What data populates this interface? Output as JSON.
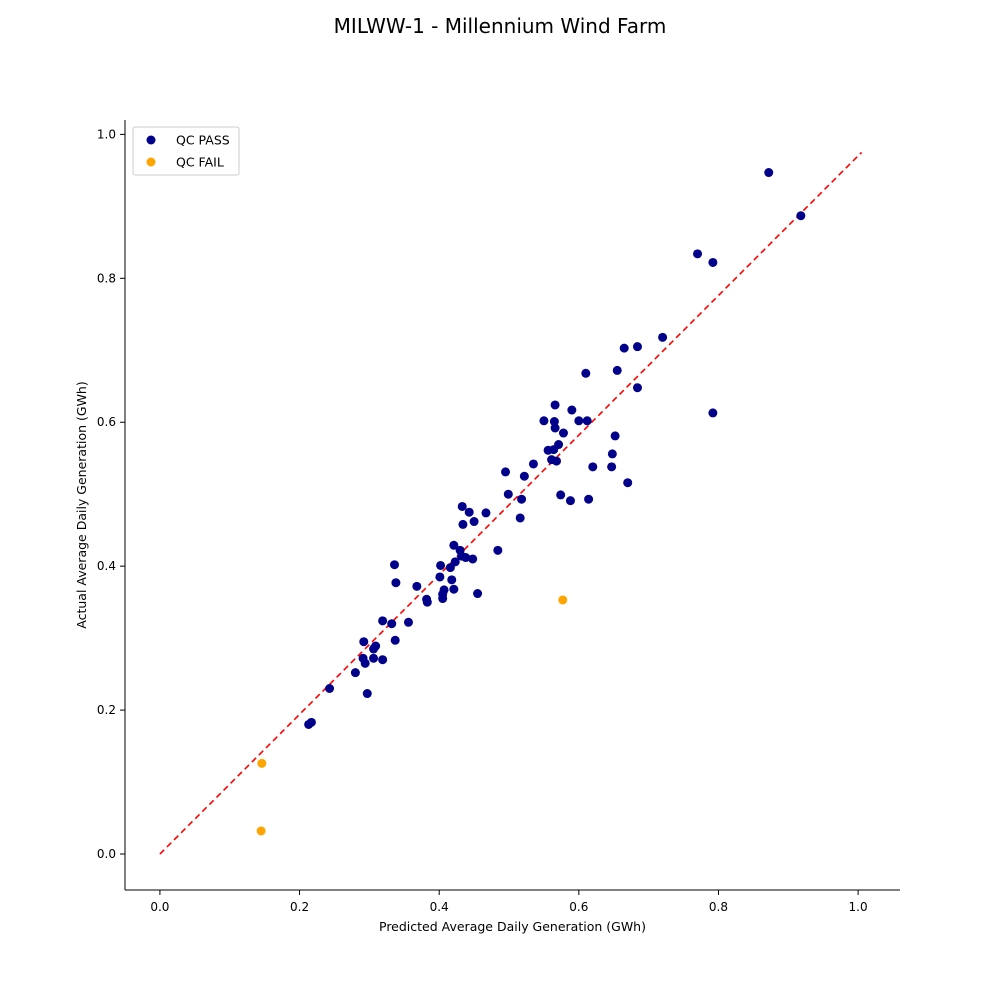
{
  "chart_data": {
    "type": "scatter",
    "title": "MILWW-1 - Millennium Wind Farm",
    "xlabel": "Predicted Average Daily Generation (GWh)",
    "ylabel": "Actual Average Daily Generation (GWh)",
    "xlim": [
      -0.05,
      1.06
    ],
    "ylim": [
      -0.05,
      1.02
    ],
    "xticks": [
      "0.0",
      "0.2",
      "0.4",
      "0.6",
      "0.8",
      "1.0"
    ],
    "yticks": [
      "0.0",
      "0.2",
      "0.4",
      "0.6",
      "0.8",
      "1.0"
    ],
    "grid": false,
    "legend_position": "top-left",
    "reference_line": {
      "style": "dashed",
      "color": "#ff0000",
      "x": [
        0.0,
        1.005
      ],
      "y": [
        0.0,
        0.975
      ]
    },
    "series": [
      {
        "name": "QC PASS",
        "color": "#00008b",
        "points": [
          [
            0.872,
            0.947
          ],
          [
            0.918,
            0.887
          ],
          [
            0.77,
            0.834
          ],
          [
            0.792,
            0.822
          ],
          [
            0.792,
            0.613
          ],
          [
            0.72,
            0.718
          ],
          [
            0.684,
            0.705
          ],
          [
            0.665,
            0.703
          ],
          [
            0.684,
            0.648
          ],
          [
            0.655,
            0.672
          ],
          [
            0.61,
            0.668
          ],
          [
            0.566,
            0.624
          ],
          [
            0.59,
            0.617
          ],
          [
            0.55,
            0.602
          ],
          [
            0.565,
            0.601
          ],
          [
            0.6,
            0.602
          ],
          [
            0.612,
            0.602
          ],
          [
            0.566,
            0.592
          ],
          [
            0.578,
            0.585
          ],
          [
            0.652,
            0.581
          ],
          [
            0.571,
            0.569
          ],
          [
            0.556,
            0.561
          ],
          [
            0.564,
            0.562
          ],
          [
            0.648,
            0.556
          ],
          [
            0.561,
            0.548
          ],
          [
            0.568,
            0.546
          ],
          [
            0.535,
            0.542
          ],
          [
            0.62,
            0.538
          ],
          [
            0.647,
            0.538
          ],
          [
            0.495,
            0.531
          ],
          [
            0.522,
            0.525
          ],
          [
            0.67,
            0.516
          ],
          [
            0.499,
            0.5
          ],
          [
            0.574,
            0.499
          ],
          [
            0.588,
            0.491
          ],
          [
            0.614,
            0.493
          ],
          [
            0.518,
            0.493
          ],
          [
            0.433,
            0.483
          ],
          [
            0.443,
            0.475
          ],
          [
            0.467,
            0.474
          ],
          [
            0.516,
            0.467
          ],
          [
            0.45,
            0.462
          ],
          [
            0.434,
            0.458
          ],
          [
            0.421,
            0.429
          ],
          [
            0.43,
            0.422
          ],
          [
            0.484,
            0.422
          ],
          [
            0.432,
            0.414
          ],
          [
            0.438,
            0.412
          ],
          [
            0.448,
            0.41
          ],
          [
            0.423,
            0.406
          ],
          [
            0.336,
            0.402
          ],
          [
            0.402,
            0.401
          ],
          [
            0.416,
            0.398
          ],
          [
            0.401,
            0.385
          ],
          [
            0.418,
            0.381
          ],
          [
            0.338,
            0.377
          ],
          [
            0.368,
            0.372
          ],
          [
            0.421,
            0.368
          ],
          [
            0.407,
            0.367
          ],
          [
            0.405,
            0.361
          ],
          [
            0.455,
            0.362
          ],
          [
            0.405,
            0.355
          ],
          [
            0.382,
            0.354
          ],
          [
            0.383,
            0.35
          ],
          [
            0.319,
            0.324
          ],
          [
            0.356,
            0.322
          ],
          [
            0.332,
            0.32
          ],
          [
            0.292,
            0.295
          ],
          [
            0.337,
            0.297
          ],
          [
            0.309,
            0.289
          ],
          [
            0.306,
            0.285
          ],
          [
            0.291,
            0.272
          ],
          [
            0.306,
            0.272
          ],
          [
            0.319,
            0.27
          ],
          [
            0.294,
            0.265
          ],
          [
            0.28,
            0.252
          ],
          [
            0.243,
            0.23
          ],
          [
            0.297,
            0.223
          ],
          [
            0.217,
            0.183
          ],
          [
            0.213,
            0.18
          ]
        ]
      },
      {
        "name": "QC FAIL",
        "color": "#ffa500",
        "points": [
          [
            0.577,
            0.353
          ],
          [
            0.146,
            0.126
          ],
          [
            0.145,
            0.032
          ]
        ]
      }
    ]
  }
}
